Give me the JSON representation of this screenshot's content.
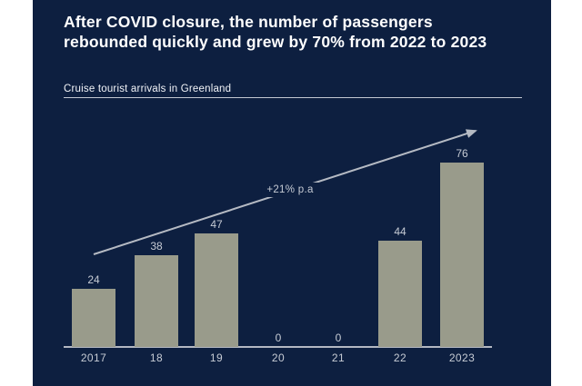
{
  "window": {
    "background": "#ffffff",
    "panel_background": "#0d1f40"
  },
  "header": {
    "title_lines": [
      "After COVID closure, the number of passengers",
      "rebounded quickly and grew by 70% from 2022 to 2023"
    ],
    "subtitle": "Cruise tourist arrivals in Greenland"
  },
  "chart_data": {
    "type": "bar",
    "title": "Cruise tourist arrivals in Greenland",
    "categories": [
      "2017",
      "18",
      "19",
      "20",
      "21",
      "22",
      "2023"
    ],
    "values": [
      24,
      38,
      47,
      0,
      0,
      44,
      76
    ],
    "xlabel": "",
    "ylabel": "",
    "ylim": [
      0,
      80
    ],
    "grid": false,
    "legend": "none",
    "y_axis_visible": false,
    "x_axis_line_visible": true,
    "value_labels_visible": true,
    "trend_label": "+21% p.a",
    "annotations": [
      {
        "type": "trend-arrow",
        "label": "+21% p.a",
        "from_category": "2017",
        "to_category": "2023",
        "direction": "up-right"
      }
    ],
    "colors": {
      "bar": "#999b8b",
      "value_label": "#c6cbd4",
      "tick_label": "#c6cbd4",
      "axis_line": "#b3b8c2",
      "arrow": "#b5bac3",
      "title_text": "#ffffff"
    }
  }
}
